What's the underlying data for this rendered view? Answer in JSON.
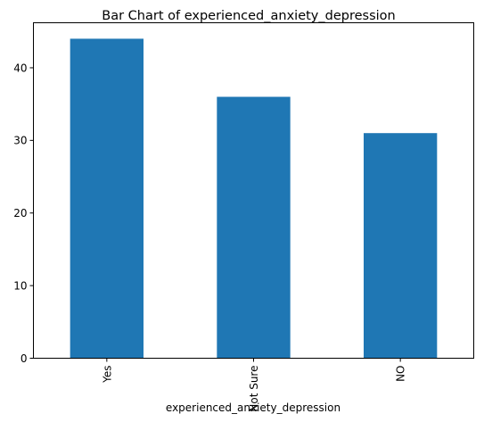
{
  "chart_data": {
    "type": "bar",
    "title": "Bar Chart of experienced_anxiety_depression",
    "xlabel": "experienced_anxiety_depression",
    "ylabel": "",
    "categories": [
      "Yes",
      "Not Sure",
      "NO"
    ],
    "values": [
      44,
      36,
      31
    ],
    "ylim": [
      0,
      46.2
    ],
    "yticks": [
      0,
      10,
      20,
      30,
      40
    ],
    "bar_color": "#1f77b4",
    "grid": false,
    "legend": "none"
  }
}
